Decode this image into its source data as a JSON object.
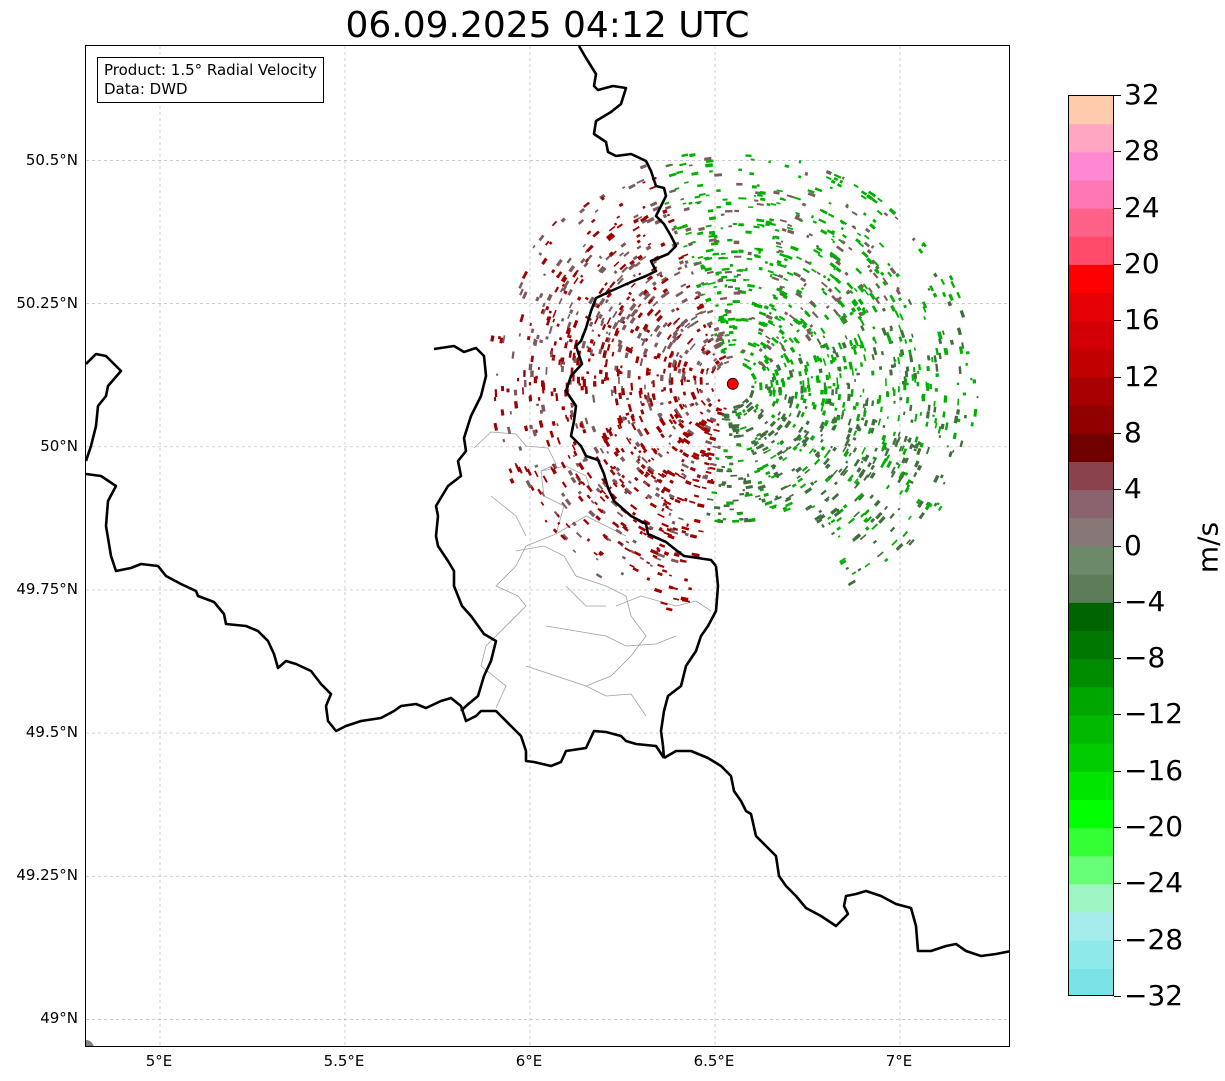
{
  "title": "06.09.2025 04:12 UTC",
  "info": {
    "product": "Product: 1.5° Radial Velocity",
    "data": "Data: DWD"
  },
  "map": {
    "lon_range": [
      4.8,
      7.3
    ],
    "lat_range": [
      48.95,
      50.7
    ],
    "lat_ticks": [
      {
        "value": 50.5,
        "label": "50.5°N"
      },
      {
        "value": 50.25,
        "label": "50.25°N"
      },
      {
        "value": 50.0,
        "label": "50°N"
      },
      {
        "value": 49.75,
        "label": "49.75°N"
      },
      {
        "value": 49.5,
        "label": "49.5°N"
      },
      {
        "value": 49.25,
        "label": "49.25°N"
      },
      {
        "value": 49.0,
        "label": "49°N"
      }
    ],
    "lon_ticks": [
      {
        "value": 5.0,
        "label": "5°E"
      },
      {
        "value": 5.5,
        "label": "5.5°E"
      },
      {
        "value": 6.0,
        "label": "6°E"
      },
      {
        "value": 6.5,
        "label": "6.5°E"
      },
      {
        "value": 7.0,
        "label": "7°E"
      }
    ],
    "radar_site": {
      "lon": 6.548,
      "lat": 50.11,
      "color": "#ff0000"
    },
    "gridlines": true
  },
  "colorbar": {
    "unit": "m/s",
    "min": -32,
    "max": 32,
    "ticks": [
      {
        "value": 32,
        "label": "32"
      },
      {
        "value": 28,
        "label": "28"
      },
      {
        "value": 24,
        "label": "24"
      },
      {
        "value": 20,
        "label": "20"
      },
      {
        "value": 16,
        "label": "16"
      },
      {
        "value": 12,
        "label": "12"
      },
      {
        "value": 8,
        "label": "8"
      },
      {
        "value": 4,
        "label": "4"
      },
      {
        "value": 0,
        "label": "0"
      },
      {
        "value": -4,
        "label": "−4"
      },
      {
        "value": -8,
        "label": "−8"
      },
      {
        "value": -12,
        "label": "−12"
      },
      {
        "value": -16,
        "label": "−16"
      },
      {
        "value": -20,
        "label": "−20"
      },
      {
        "value": -24,
        "label": "−24"
      },
      {
        "value": -28,
        "label": "−28"
      },
      {
        "value": -32,
        "label": "−32"
      }
    ],
    "colors_top_to_bottom": [
      "#ffcbad",
      "#ffa6c3",
      "#ff88d2",
      "#ff78b5",
      "#ff6188",
      "#ff4a6a",
      "#ff0000",
      "#e40004",
      "#d20006",
      "#c10000",
      "#a80000",
      "#900000",
      "#700000",
      "#8a434c",
      "#8a636f",
      "#877878",
      "#6c8a6a",
      "#5c7d58",
      "#006400",
      "#007700",
      "#008c00",
      "#00a600",
      "#00b900",
      "#00cc00",
      "#00e500",
      "#00ff00",
      "#33ff33",
      "#66ff77",
      "#9ff4c4",
      "#a7ecec",
      "#8de9ea",
      "#78e2e6"
    ]
  },
  "legend_colors": {
    "borders": "#000000",
    "districts": "#a0a0a0",
    "outbound_dark_red": "#a00000",
    "outbound_brownish": "#7d5a5e",
    "inbound_green": "#00b000",
    "inbound_dark_green": "#3f6f3c"
  }
}
